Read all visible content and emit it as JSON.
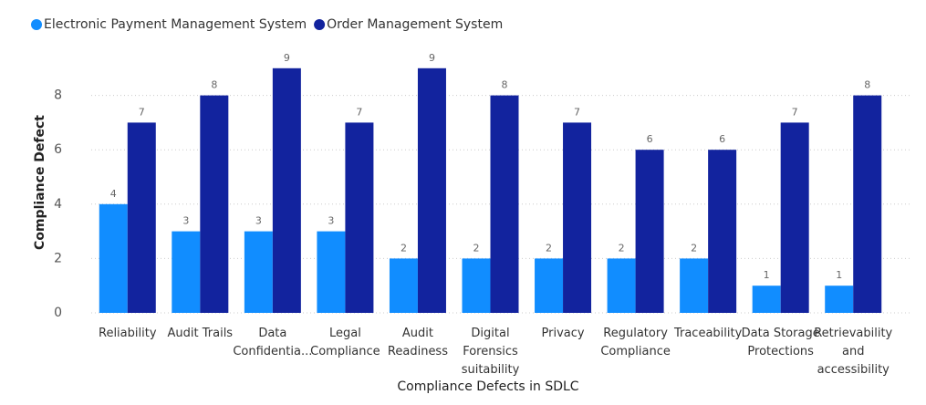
{
  "chart_data": {
    "type": "bar",
    "x_label": "Compliance Defects in SDLC",
    "y_label": "Compliance Defect",
    "categories": [
      "Reliability",
      "Audit Trails",
      "Data Confidentia...",
      "Legal Compliance",
      "Audit Readiness",
      "Digital Forensics suitability",
      "Privacy",
      "Regulatory Compliance",
      "Traceability",
      "Data Storage Protections",
      "Retrievability and accessibility"
    ],
    "series": [
      {
        "name": "Electronic Payment Management  System",
        "color": "#118dff",
        "values": [
          4,
          3,
          3,
          3,
          2,
          2,
          2,
          2,
          2,
          1,
          1
        ]
      },
      {
        "name": "Order Management System",
        "color": "#12239e",
        "values": [
          7,
          8,
          9,
          7,
          9,
          8,
          7,
          6,
          6,
          7,
          8
        ]
      }
    ],
    "ylim": [
      0,
      10
    ],
    "yticks": [
      0,
      2,
      4,
      6,
      8
    ],
    "grid": true,
    "legend": "top-left"
  }
}
